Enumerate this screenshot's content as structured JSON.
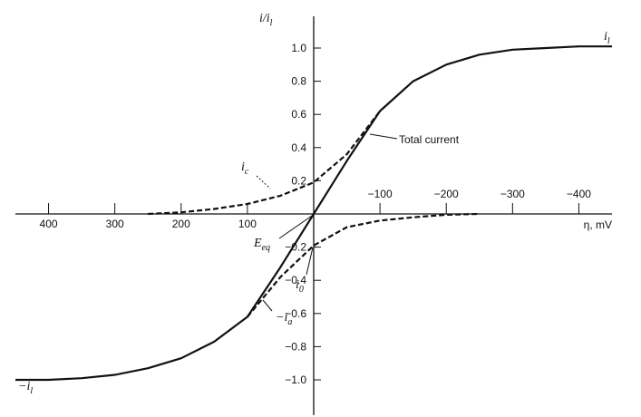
{
  "chart_data": {
    "type": "line",
    "x": [
      450,
      400,
      350,
      300,
      250,
      200,
      150,
      100,
      50,
      0,
      -50,
      -100,
      -150,
      -200,
      -250,
      -300,
      -350,
      -400,
      -450
    ],
    "series": [
      {
        "color": "#111111",
        "dash": false,
        "values": [
          -1.0,
          -1.0,
          -0.99,
          -0.97,
          -0.93,
          -0.87,
          -0.77,
          -0.62,
          -0.32,
          0,
          0.32,
          0.62,
          0.8,
          0.9,
          0.96,
          0.99,
          1.0,
          1.01,
          1.01
        ]
      },
      {
        "color": "#111111",
        "dash": true,
        "values": [
          null,
          null,
          null,
          null,
          0,
          0.01,
          0.03,
          0.06,
          0.11,
          0.19,
          0.36,
          0.62,
          null,
          null,
          null,
          null,
          null,
          null,
          null
        ]
      },
      {
        "color": "#111111",
        "dash": true,
        "values": [
          null,
          null,
          null,
          null,
          null,
          null,
          null,
          -0.62,
          -0.38,
          -0.19,
          -0.08,
          -0.04,
          -0.02,
          -0.005,
          0,
          null,
          null,
          null,
          null
        ]
      }
    ],
    "xlim": [
      450,
      -450
    ],
    "ylim": [
      -1.2,
      1.2
    ],
    "xticks": [
      400,
      300,
      200,
      100,
      {
        "value": -100,
        "label": "−100"
      },
      {
        "value": -200,
        "label": "−200"
      },
      {
        "value": -300,
        "label": "−300"
      },
      {
        "value": -400,
        "label": "−400"
      }
    ],
    "yticks": [
      {
        "value": 1,
        "label": "1.0"
      },
      0.8,
      0.6,
      0.4,
      0.2,
      {
        "value": -0.2,
        "label": "−0.2"
      },
      {
        "value": -0.4,
        "label": "−0.4"
      },
      {
        "value": -0.6,
        "label": "−0.6"
      },
      {
        "value": -0.8,
        "label": "−0.8"
      },
      {
        "value": -1,
        "label": "−1.0"
      }
    ],
    "x_label": "η, mV",
    "y_label": {
      "text": "i/i",
      "sub": "l"
    },
    "annotations": [
      {
        "text": "i",
        "sub": "l"
      },
      {
        "text": "−i",
        "sub": "l"
      },
      {
        "text": "Total current"
      },
      {
        "text": "i",
        "sub": "c"
      },
      {
        "text": "E",
        "sub": "eq"
      },
      {
        "text": "i",
        "sub": "0"
      },
      {
        "text": "−i",
        "sub": "a"
      }
    ]
  }
}
